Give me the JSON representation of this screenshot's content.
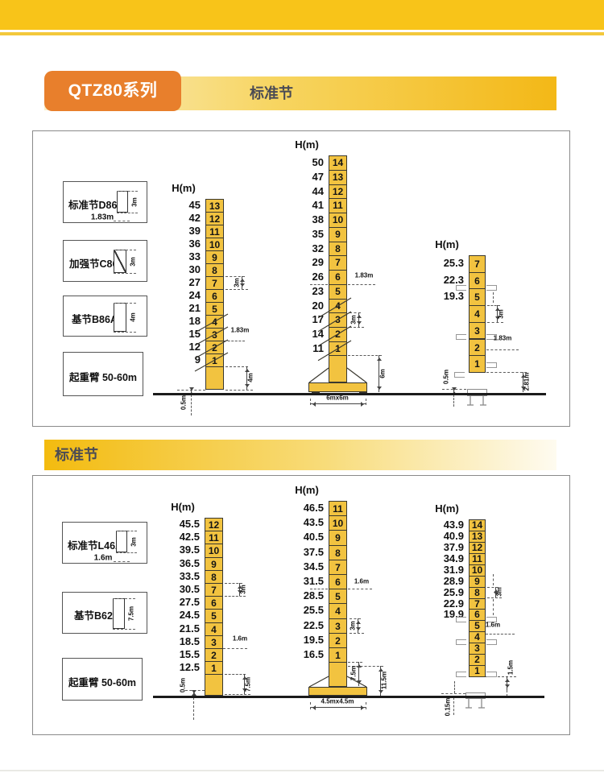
{
  "page": {
    "badge": "QTZ80系列",
    "header1_title": "标准节",
    "header2_title": "标准节"
  },
  "panel1": {
    "legend": [
      {
        "label": "标准节D86",
        "dim_h": "3m",
        "dim_w": "1.83m"
      },
      {
        "label": "加强节C86",
        "dim_h": "3m"
      },
      {
        "label": "基节B86A",
        "dim_h": "4m"
      },
      {
        "label": "起重臂 50-60m"
      }
    ],
    "towers": [
      {
        "h_unit": "H(m)",
        "heights": [
          "45",
          "42",
          "39",
          "36",
          "33",
          "30",
          "27",
          "24",
          "21",
          "18",
          "15",
          "12",
          "9"
        ],
        "sections": [
          "13",
          "12",
          "11",
          "10",
          "9",
          "8",
          "7",
          "6",
          "5",
          "4",
          "3",
          "2",
          "1"
        ],
        "reinforced": [
          "4",
          "3",
          "2",
          "1"
        ],
        "dims": {
          "d3m": "3m",
          "d183": "1.83m",
          "d4m": "4m",
          "d05": "0.5m"
        }
      },
      {
        "h_unit": "H(m)",
        "heights": [
          "50",
          "47",
          "44",
          "41",
          "38",
          "35",
          "32",
          "29",
          "26",
          "23",
          "20",
          "17",
          "14",
          "11"
        ],
        "sections": [
          "14",
          "13",
          "12",
          "11",
          "10",
          "9",
          "8",
          "7",
          "6",
          "5",
          "4",
          "3",
          "2",
          "1"
        ],
        "reinforced": [
          "4",
          "3",
          "2",
          "1"
        ],
        "dims": {
          "d183": "1.83m",
          "d3m": "3m",
          "d6m": "6m",
          "dbase": "6mx6m"
        }
      },
      {
        "h_unit": "H(m)",
        "heights": [
          "25.3",
          "22.3",
          "19.3"
        ],
        "sections": [
          "7",
          "6",
          "5",
          "4",
          "3",
          "2",
          "1"
        ],
        "reinforced": [],
        "dims": {
          "d3m": "3m",
          "d183": "1.83m",
          "d05": "0.5m",
          "d281": "2.81m"
        }
      }
    ]
  },
  "panel2": {
    "legend": [
      {
        "label": "标准节L46A",
        "dim_h": "3m",
        "dim_w": "1.6m"
      },
      {
        "label": "基节B62",
        "dim_h": "7.5m"
      },
      {
        "label": "起重臂 50-60m"
      }
    ],
    "towers": [
      {
        "h_unit": "H(m)",
        "heights": [
          "45.5",
          "42.5",
          "39.5",
          "36.5",
          "33.5",
          "30.5",
          "27.5",
          "24.5",
          "21.5",
          "18.5",
          "15.5",
          "12.5"
        ],
        "sections": [
          "12",
          "11",
          "10",
          "9",
          "8",
          "7",
          "6",
          "5",
          "4",
          "3",
          "2",
          "1"
        ],
        "reinforced": [],
        "dims": {
          "d3m": "3m",
          "d16": "1.6m",
          "d75": "7.5m",
          "d05": "0.5m"
        }
      },
      {
        "h_unit": "H(m)",
        "heights": [
          "46.5",
          "43.5",
          "40.5",
          "37.5",
          "34.5",
          "31.5",
          "28.5",
          "25.5",
          "22.5",
          "19.5",
          "16.5"
        ],
        "sections": [
          "11",
          "10",
          "9",
          "8",
          "7",
          "6",
          "5",
          "4",
          "3",
          "2",
          "1"
        ],
        "reinforced": [],
        "dims": {
          "d16": "1.6m",
          "d3m": "3m",
          "d75": "7.5m",
          "d115": "11.5m",
          "dbase": "4.5mx4.5m"
        }
      },
      {
        "h_unit": "H(m)",
        "heights": [
          "43.9",
          "40.9",
          "37.9",
          "34.9",
          "31.9",
          "28.9",
          "25.9",
          "22.9",
          "19.9"
        ],
        "sections": [
          "14",
          "13",
          "12",
          "11",
          "10",
          "9",
          "8",
          "7",
          "6",
          "5",
          "4",
          "3",
          "2",
          "1"
        ],
        "reinforced": [],
        "dims": {
          "d3m": "3m",
          "d16": "1.6m",
          "d15": "1.5m",
          "d015": "0.15m"
        }
      }
    ]
  }
}
